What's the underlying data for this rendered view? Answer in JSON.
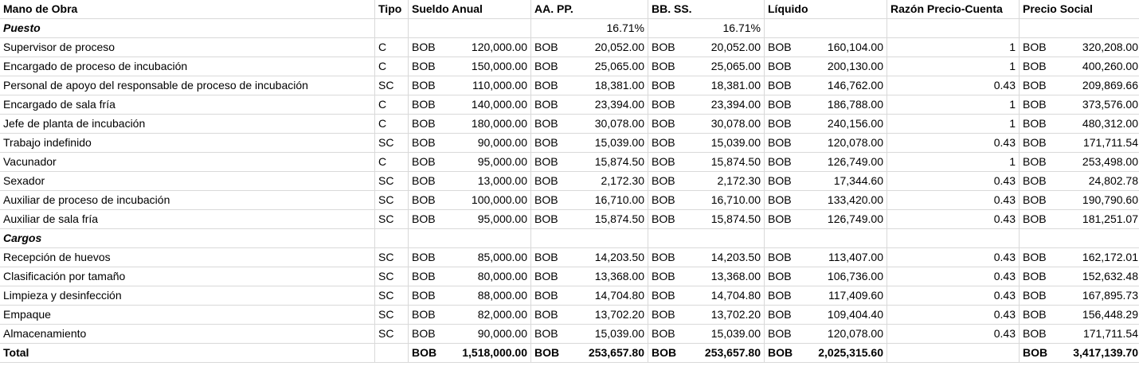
{
  "headers": [
    "Mano de Obra",
    "Tipo",
    "Sueldo Anual",
    "AA. PP.",
    "BB. SS.",
    "Líquido",
    "Razón Precio-Cuenta",
    "Precio Social"
  ],
  "currency": "BOB",
  "sections": [
    {
      "title": "Puesto",
      "aa_pp_rate": "16.71%",
      "bb_ss_rate": "16.71%",
      "rows": [
        {
          "name": "Supervisor de proceso",
          "tipo": "C",
          "sueldo": "120,000.00",
          "aapp": "20,052.00",
          "bbss": "20,052.00",
          "liquido": "160,104.00",
          "razon": "1",
          "precio": "320,208.00"
        },
        {
          "name": "Encargado de proceso de incubación",
          "tipo": "C",
          "sueldo": "150,000.00",
          "aapp": "25,065.00",
          "bbss": "25,065.00",
          "liquido": "200,130.00",
          "razon": "1",
          "precio": "400,260.00"
        },
        {
          "name": "Personal de apoyo del responsable de proceso de incubación",
          "tipo": "SC",
          "sueldo": "110,000.00",
          "aapp": "18,381.00",
          "bbss": "18,381.00",
          "liquido": "146,762.00",
          "razon": "0.43",
          "precio": "209,869.66"
        },
        {
          "name": "Encargado de sala fría",
          "tipo": "C",
          "sueldo": "140,000.00",
          "aapp": "23,394.00",
          "bbss": "23,394.00",
          "liquido": "186,788.00",
          "razon": "1",
          "precio": "373,576.00"
        },
        {
          "name": "Jefe de planta de incubación",
          "tipo": "C",
          "sueldo": "180,000.00",
          "aapp": "30,078.00",
          "bbss": "30,078.00",
          "liquido": "240,156.00",
          "razon": "1",
          "precio": "480,312.00"
        },
        {
          "name": "Trabajo indefinido",
          "tipo": "SC",
          "sueldo": "90,000.00",
          "aapp": "15,039.00",
          "bbss": "15,039.00",
          "liquido": "120,078.00",
          "razon": "0.43",
          "precio": "171,711.54"
        },
        {
          "name": "Vacunador",
          "tipo": "C",
          "sueldo": "95,000.00",
          "aapp": "15,874.50",
          "bbss": "15,874.50",
          "liquido": "126,749.00",
          "razon": "1",
          "precio": "253,498.00"
        },
        {
          "name": "Sexador",
          "tipo": "SC",
          "sueldo": "13,000.00",
          "aapp": "2,172.30",
          "bbss": "2,172.30",
          "liquido": "17,344.60",
          "razon": "0.43",
          "precio": "24,802.78"
        },
        {
          "name": "Auxiliar de proceso de incubación",
          "tipo": "SC",
          "sueldo": "100,000.00",
          "aapp": "16,710.00",
          "bbss": "16,710.00",
          "liquido": "133,420.00",
          "razon": "0.43",
          "precio": "190,790.60"
        },
        {
          "name": "Auxiliar de sala fría",
          "tipo": "SC",
          "sueldo": "95,000.00",
          "aapp": "15,874.50",
          "bbss": "15,874.50",
          "liquido": "126,749.00",
          "razon": "0.43",
          "precio": "181,251.07"
        }
      ]
    },
    {
      "title": "Cargos",
      "aa_pp_rate": "",
      "bb_ss_rate": "",
      "rows": [
        {
          "name": "Recepción de huevos",
          "tipo": "SC",
          "sueldo": "85,000.00",
          "aapp": "14,203.50",
          "bbss": "14,203.50",
          "liquido": "113,407.00",
          "razon": "0.43",
          "precio": "162,172.01"
        },
        {
          "name": "Clasificación por tamaño",
          "tipo": "SC",
          "sueldo": "80,000.00",
          "aapp": "13,368.00",
          "bbss": "13,368.00",
          "liquido": "106,736.00",
          "razon": "0.43",
          "precio": "152,632.48"
        },
        {
          "name": "Limpieza y desinfección",
          "tipo": "SC",
          "sueldo": "88,000.00",
          "aapp": "14,704.80",
          "bbss": "14,704.80",
          "liquido": "117,409.60",
          "razon": "0.43",
          "precio": "167,895.73"
        },
        {
          "name": "Empaque",
          "tipo": "SC",
          "sueldo": "82,000.00",
          "aapp": "13,702.20",
          "bbss": "13,702.20",
          "liquido": "109,404.40",
          "razon": "0.43",
          "precio": "156,448.29"
        },
        {
          "name": "Almacenamiento",
          "tipo": "SC",
          "sueldo": "90,000.00",
          "aapp": "15,039.00",
          "bbss": "15,039.00",
          "liquido": "120,078.00",
          "razon": "0.43",
          "precio": "171,711.54"
        }
      ]
    }
  ],
  "total": {
    "label": "Total",
    "sueldo": "1,518,000.00",
    "aapp": "253,657.80",
    "bbss": "253,657.80",
    "liquido": "2,025,315.60",
    "precio": "3,417,139.70"
  }
}
